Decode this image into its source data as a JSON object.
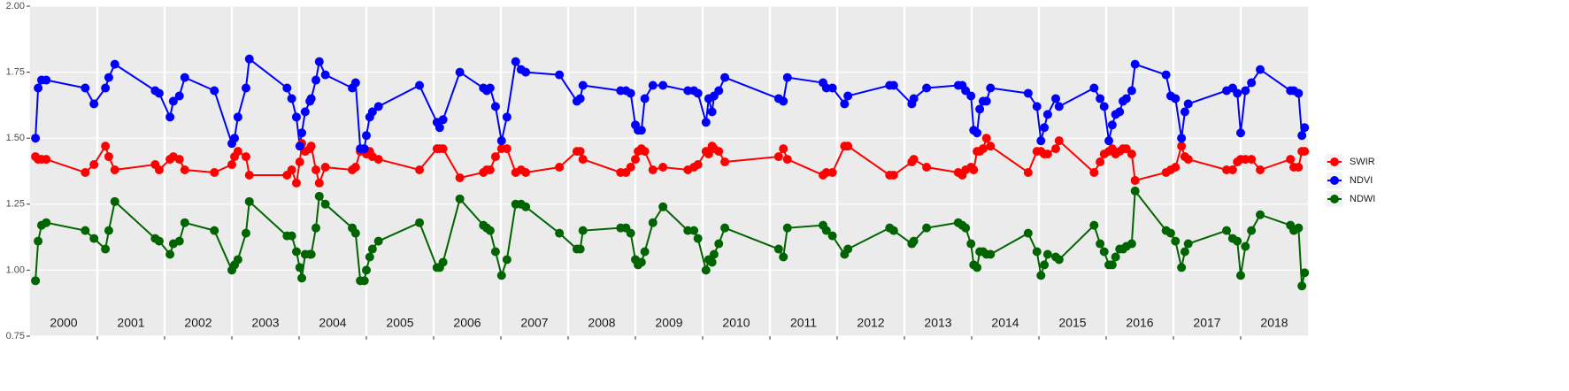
{
  "chart_data": {
    "type": "line",
    "x": [
      2000.08,
      2000.12,
      2000.17,
      2000.24,
      2000.82,
      2000.95,
      2001.12,
      2001.17,
      2001.26,
      2001.86,
      2001.92,
      2002.08,
      2002.13,
      2002.22,
      2002.3,
      2002.74,
      2003.0,
      2003.04,
      2003.09,
      2003.21,
      2003.26,
      2003.82,
      2003.89,
      2003.96,
      2004.01,
      2004.04,
      2004.09,
      2004.16,
      2004.18,
      2004.25,
      2004.3,
      2004.39,
      2004.79,
      2004.84,
      2004.91,
      2004.97,
      2005.0,
      2005.05,
      2005.09,
      2005.18,
      2005.79,
      2006.05,
      2006.09,
      2006.14,
      2006.39,
      2006.74,
      2006.79,
      2006.84,
      2006.92,
      2007.01,
      2007.09,
      2007.22,
      2007.3,
      2007.37,
      2007.87,
      2008.13,
      2008.18,
      2008.22,
      2008.78,
      2008.86,
      2008.93,
      2009.0,
      2009.04,
      2009.09,
      2009.14,
      2009.26,
      2009.41,
      2009.78,
      2009.87,
      2009.93,
      2010.05,
      2010.09,
      2010.14,
      2010.17,
      2010.24,
      2010.33,
      2011.13,
      2011.2,
      2011.26,
      2011.79,
      2011.84,
      2011.93,
      2012.11,
      2012.16,
      2012.78,
      2012.84,
      2013.11,
      2013.14,
      2013.33,
      2013.8,
      2013.86,
      2013.91,
      2013.99,
      2014.03,
      2014.08,
      2014.12,
      2014.17,
      2014.22,
      2014.28,
      2014.84,
      2014.97,
      2015.03,
      2015.08,
      2015.13,
      2015.25,
      2015.3,
      2015.82,
      2015.91,
      2015.97,
      2016.04,
      2016.09,
      2016.14,
      2016.2,
      2016.25,
      2016.3,
      2016.38,
      2016.43,
      2016.89,
      2016.96,
      2017.03,
      2017.12,
      2017.17,
      2017.22,
      2017.79,
      2017.88,
      2017.95,
      2018.0,
      2018.07,
      2018.16,
      2018.29,
      2018.74,
      2018.79,
      2018.86,
      2018.91,
      2018.95
    ],
    "series": [
      {
        "name": "SWIR",
        "color": "#ff0000",
        "values": [
          1.43,
          1.42,
          1.42,
          1.42,
          1.37,
          1.4,
          1.47,
          1.43,
          1.38,
          1.4,
          1.38,
          1.42,
          1.43,
          1.42,
          1.38,
          1.37,
          1.4,
          1.43,
          1.45,
          1.43,
          1.36,
          1.36,
          1.38,
          1.33,
          1.41,
          1.48,
          1.45,
          1.46,
          1.47,
          1.38,
          1.33,
          1.39,
          1.38,
          1.39,
          1.45,
          1.46,
          1.44,
          1.45,
          1.43,
          1.42,
          1.38,
          1.46,
          1.46,
          1.46,
          1.35,
          1.37,
          1.38,
          1.38,
          1.43,
          1.46,
          1.46,
          1.37,
          1.38,
          1.37,
          1.39,
          1.45,
          1.45,
          1.42,
          1.37,
          1.37,
          1.39,
          1.42,
          1.45,
          1.46,
          1.45,
          1.38,
          1.39,
          1.38,
          1.39,
          1.4,
          1.45,
          1.44,
          1.47,
          1.46,
          1.45,
          1.41,
          1.43,
          1.46,
          1.42,
          1.36,
          1.37,
          1.37,
          1.47,
          1.47,
          1.36,
          1.36,
          1.41,
          1.42,
          1.39,
          1.37,
          1.36,
          1.38,
          1.39,
          1.38,
          1.45,
          1.45,
          1.46,
          1.5,
          1.47,
          1.37,
          1.45,
          1.45,
          1.44,
          1.44,
          1.46,
          1.49,
          1.37,
          1.41,
          1.44,
          1.45,
          1.46,
          1.44,
          1.45,
          1.46,
          1.46,
          1.44,
          1.34,
          1.37,
          1.38,
          1.39,
          1.47,
          1.43,
          1.42,
          1.38,
          1.38,
          1.41,
          1.42,
          1.42,
          1.42,
          1.38,
          1.42,
          1.39,
          1.39,
          1.45,
          1.45
        ]
      },
      {
        "name": "NDVI",
        "color": "#0000ff",
        "values": [
          1.5,
          1.69,
          1.72,
          1.72,
          1.69,
          1.63,
          1.69,
          1.73,
          1.78,
          1.68,
          1.67,
          1.58,
          1.64,
          1.66,
          1.73,
          1.68,
          1.48,
          1.5,
          1.58,
          1.69,
          1.8,
          1.69,
          1.65,
          1.58,
          1.47,
          1.52,
          1.6,
          1.64,
          1.65,
          1.72,
          1.79,
          1.74,
          1.69,
          1.71,
          1.46,
          1.46,
          1.51,
          1.58,
          1.6,
          1.62,
          1.7,
          1.56,
          1.54,
          1.57,
          1.75,
          1.69,
          1.68,
          1.69,
          1.62,
          1.49,
          1.58,
          1.79,
          1.76,
          1.75,
          1.74,
          1.64,
          1.65,
          1.7,
          1.68,
          1.68,
          1.67,
          1.55,
          1.53,
          1.53,
          1.65,
          1.7,
          1.7,
          1.68,
          1.68,
          1.67,
          1.56,
          1.65,
          1.6,
          1.66,
          1.68,
          1.73,
          1.65,
          1.64,
          1.73,
          1.71,
          1.69,
          1.69,
          1.63,
          1.66,
          1.7,
          1.7,
          1.63,
          1.65,
          1.69,
          1.7,
          1.7,
          1.68,
          1.66,
          1.53,
          1.52,
          1.61,
          1.64,
          1.64,
          1.69,
          1.67,
          1.62,
          1.49,
          1.54,
          1.59,
          1.65,
          1.62,
          1.69,
          1.65,
          1.62,
          1.49,
          1.55,
          1.59,
          1.6,
          1.64,
          1.65,
          1.68,
          1.78,
          1.74,
          1.66,
          1.65,
          1.5,
          1.6,
          1.63,
          1.68,
          1.69,
          1.67,
          1.52,
          1.68,
          1.71,
          1.76,
          1.68,
          1.68,
          1.67,
          1.51,
          1.54
        ]
      },
      {
        "name": "NDWI",
        "color": "#006400",
        "values": [
          0.96,
          1.11,
          1.17,
          1.18,
          1.15,
          1.12,
          1.08,
          1.15,
          1.26,
          1.12,
          1.11,
          1.06,
          1.1,
          1.11,
          1.18,
          1.15,
          1.0,
          1.02,
          1.04,
          1.14,
          1.26,
          1.13,
          1.13,
          1.07,
          1.01,
          0.97,
          1.06,
          1.06,
          1.06,
          1.16,
          1.28,
          1.25,
          1.16,
          1.14,
          0.96,
          0.96,
          1.0,
          1.05,
          1.08,
          1.11,
          1.18,
          1.01,
          1.01,
          1.03,
          1.27,
          1.17,
          1.16,
          1.15,
          1.07,
          0.98,
          1.04,
          1.25,
          1.25,
          1.24,
          1.14,
          1.08,
          1.08,
          1.15,
          1.16,
          1.16,
          1.14,
          1.04,
          1.02,
          1.03,
          1.07,
          1.18,
          1.24,
          1.15,
          1.15,
          1.12,
          1.0,
          1.04,
          1.03,
          1.06,
          1.1,
          1.16,
          1.08,
          1.05,
          1.16,
          1.17,
          1.15,
          1.13,
          1.06,
          1.08,
          1.16,
          1.15,
          1.1,
          1.11,
          1.16,
          1.18,
          1.17,
          1.16,
          1.1,
          1.02,
          1.01,
          1.07,
          1.07,
          1.06,
          1.06,
          1.14,
          1.07,
          0.98,
          1.02,
          1.06,
          1.05,
          1.04,
          1.17,
          1.1,
          1.07,
          1.02,
          1.02,
          1.05,
          1.08,
          1.08,
          1.09,
          1.1,
          1.3,
          1.15,
          1.14,
          1.11,
          1.01,
          1.07,
          1.1,
          1.15,
          1.12,
          1.11,
          0.98,
          1.09,
          1.15,
          1.21,
          1.17,
          1.15,
          1.16,
          0.94,
          0.99
        ]
      }
    ],
    "xlim": [
      2000,
      2019
    ],
    "year_lines": [
      2001,
      2002,
      2003,
      2004,
      2005,
      2006,
      2007,
      2008,
      2009,
      2010,
      2011,
      2012,
      2013,
      2014,
      2015,
      2016,
      2017,
      2018
    ],
    "year_labels": [
      "2000",
      "2001",
      "2002",
      "2003",
      "2004",
      "2005",
      "2006",
      "2007",
      "2008",
      "2009",
      "2010",
      "2011",
      "2012",
      "2013",
      "2014",
      "2015",
      "2016",
      "2017",
      "2018"
    ],
    "ylim": [
      0.75,
      2.0
    ],
    "yticks": [
      {
        "value": 0.75,
        "label": "0.75"
      },
      {
        "value": 1.0,
        "label": "1.00"
      },
      {
        "value": 1.25,
        "label": "1.25"
      },
      {
        "value": 1.5,
        "label": "1.50"
      },
      {
        "value": 1.75,
        "label": "1.75"
      },
      {
        "value": 2.0,
        "label": "2.00"
      }
    ],
    "grid": true,
    "legend": "right"
  }
}
